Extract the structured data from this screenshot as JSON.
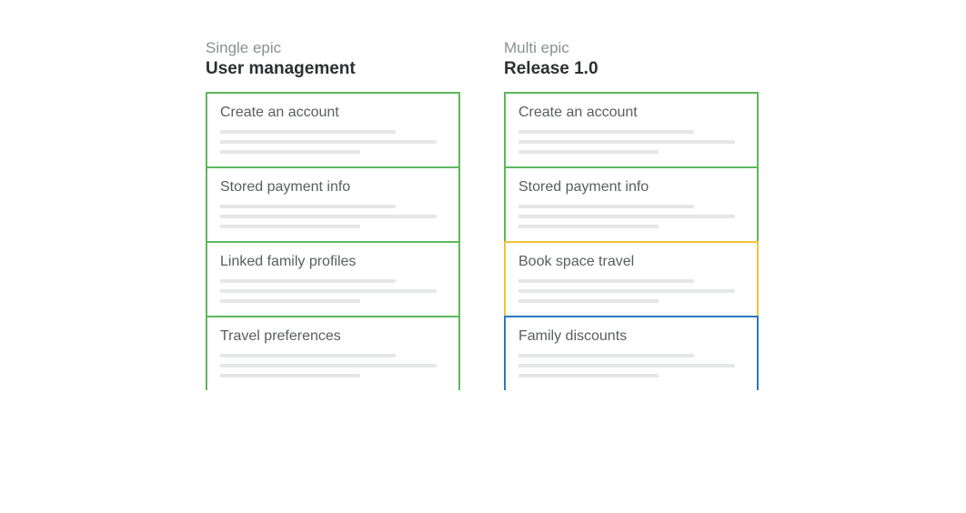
{
  "colors": {
    "green": "#5cb85c",
    "yellow": "#f0c23c",
    "blue": "#2b78c4",
    "line": "#e5e6e7",
    "label_text": "#8a8f94",
    "title_text": "#2d2f31",
    "card_title": "#5a5d60",
    "background": "#ffffff"
  },
  "columns": [
    {
      "label": "Single epic",
      "title": "User management",
      "cards": [
        {
          "title": "Create an account",
          "border": "green"
        },
        {
          "title": "Stored payment info",
          "border": "green"
        },
        {
          "title": "Linked family profiles",
          "border": "green"
        },
        {
          "title": "Travel preferences",
          "border": "green"
        }
      ]
    },
    {
      "label": "Multi epic",
      "title": "Release 1.0",
      "cards": [
        {
          "title": "Create an account",
          "border": "green"
        },
        {
          "title": "Stored payment info",
          "border": "green"
        },
        {
          "title": "Book space travel",
          "border": "yellow"
        },
        {
          "title": "Family discounts",
          "border": "blue"
        }
      ]
    }
  ]
}
